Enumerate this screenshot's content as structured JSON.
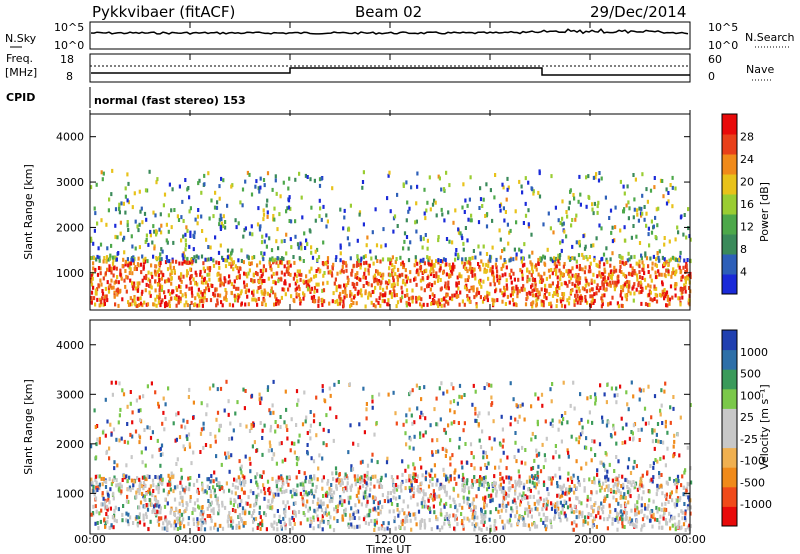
{
  "header": {
    "title": "Pykkvibaer (fitACF)",
    "beam": "Beam 02",
    "date": "29/Dec/2014"
  },
  "panels": {
    "nsky": {
      "label": "N.Sky",
      "ticks": [
        "10^5",
        "10^0"
      ],
      "right_label": "N.Search",
      "right_ticks": [
        "10^5",
        "10^0"
      ]
    },
    "freq": {
      "label_line1": "Freq.",
      "label_line2": "[MHz]",
      "ticks": [
        "18",
        "8"
      ],
      "right_label": "Nave",
      "right_ticks": [
        "60",
        "0"
      ]
    },
    "cpid": {
      "label": "CPID",
      "mode": "normal (fast stereo) 153"
    }
  },
  "colors": {
    "power": [
      "#1a2ad8",
      "#2d5fb8",
      "#3a8a5a",
      "#4da84a",
      "#9acd32",
      "#e8c21a",
      "#f08a1a",
      "#e8401a",
      "#e80a0a"
    ],
    "velocity": [
      "#e80a0a",
      "#f04a1a",
      "#f08a1a",
      "#f0b050",
      "#c8c8c8",
      "#c8c8c8",
      "#7bc84a",
      "#3a9a5a",
      "#2d6fa8",
      "#2040b0"
    ]
  },
  "chart_data": [
    {
      "type": "heatmap",
      "title": "Power",
      "ylabel": "Slant Range [km]",
      "ylim": [
        180,
        4500
      ],
      "yticks": [
        "4000",
        "3000",
        "2000",
        "1000"
      ],
      "xlim_hours": [
        0,
        24
      ],
      "colorbar": {
        "label": "Power [dB]",
        "ticks": [
          "28",
          "24",
          "20",
          "16",
          "12",
          "8",
          "4"
        ]
      },
      "scatter_bands": [
        {
          "x_start": 0,
          "x_end": 24,
          "range_low": 300,
          "range_high": 1400,
          "dominant": "high power"
        }
      ]
    },
    {
      "type": "heatmap",
      "title": "Velocity",
      "ylabel": "Slant Range [km]",
      "ylim": [
        180,
        4500
      ],
      "yticks": [
        "4000",
        "3000",
        "2000",
        "1000"
      ],
      "xlim_hours": [
        0,
        24
      ],
      "colorbar": {
        "label": "Velocity [m s⁻¹]",
        "ticks": [
          "1000",
          "500",
          "100",
          "25",
          "-25",
          "-100",
          "-500",
          "-1000"
        ]
      }
    }
  ],
  "xaxis": {
    "ticks": [
      "00:00",
      "04:00",
      "08:00",
      "12:00",
      "16:00",
      "20:00",
      "00:00"
    ],
    "label": "Time UT"
  }
}
